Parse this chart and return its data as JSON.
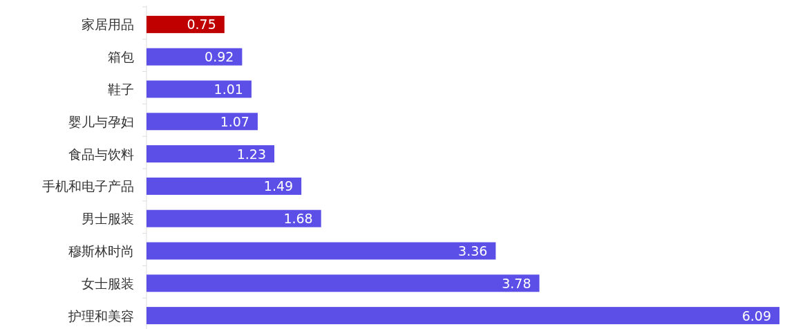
{
  "chart_data": {
    "type": "bar",
    "orientation": "horizontal",
    "data_labels": true,
    "categories": [
      "家居用品",
      "箱包",
      "鞋子",
      "婴儿与孕妇",
      "食品与饮料",
      "手机和电子产品",
      "男士服装",
      "穆斯林时尚",
      "女士服装",
      "护理和美容"
    ],
    "values": [
      0.75,
      0.92,
      1.01,
      1.07,
      1.23,
      1.49,
      1.68,
      3.36,
      3.78,
      6.09
    ],
    "colors": [
      "#c00000",
      "#5b4fe8",
      "#5b4fe8",
      "#5b4fe8",
      "#5b4fe8",
      "#5b4fe8",
      "#5b4fe8",
      "#5b4fe8",
      "#5b4fe8",
      "#5b4fe8"
    ]
  }
}
